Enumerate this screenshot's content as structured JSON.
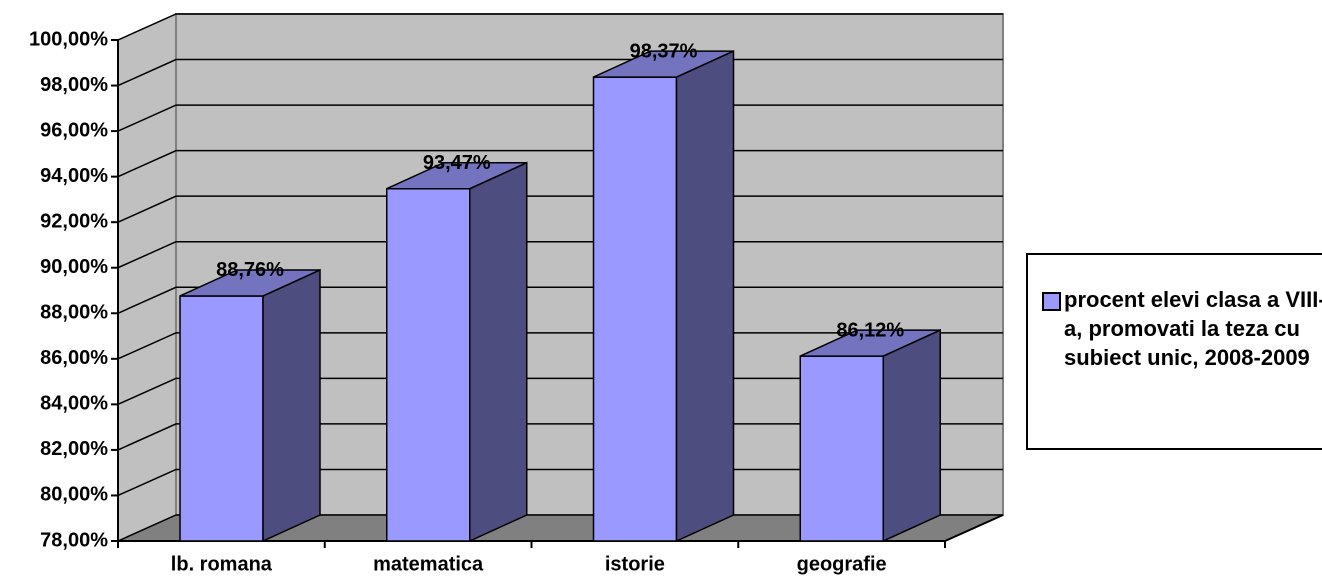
{
  "chart_data": {
    "type": "bar3d",
    "categories": [
      "lb. romana",
      "matematica",
      "istorie",
      "geografie"
    ],
    "series": [
      {
        "name": "procent elevi clasa a VIII-a, promovati la teza cu subiect unic, 2008-2009",
        "color": "#9999ff",
        "values": [
          88.76,
          93.47,
          98.37,
          86.12
        ],
        "value_labels": [
          "88,76%",
          "93,47%",
          "98,37%",
          "86,12%"
        ]
      }
    ],
    "ylim": [
      78,
      100
    ],
    "yticks": [
      {
        "value": 78,
        "label": "78,00%"
      },
      {
        "value": 80,
        "label": "80,00%"
      },
      {
        "value": 82,
        "label": "82,00%"
      },
      {
        "value": 84,
        "label": "84,00%"
      },
      {
        "value": 86,
        "label": "86,00%"
      },
      {
        "value": 88,
        "label": "88,00%"
      },
      {
        "value": 90,
        "label": "90,00%"
      },
      {
        "value": 92,
        "label": "92,00%"
      },
      {
        "value": 94,
        "label": "94,00%"
      },
      {
        "value": 96,
        "label": "96,00%"
      },
      {
        "value": 98,
        "label": "98,00%"
      },
      {
        "value": 100,
        "label": "100,00%"
      }
    ],
    "grid": true,
    "legend": "right"
  }
}
